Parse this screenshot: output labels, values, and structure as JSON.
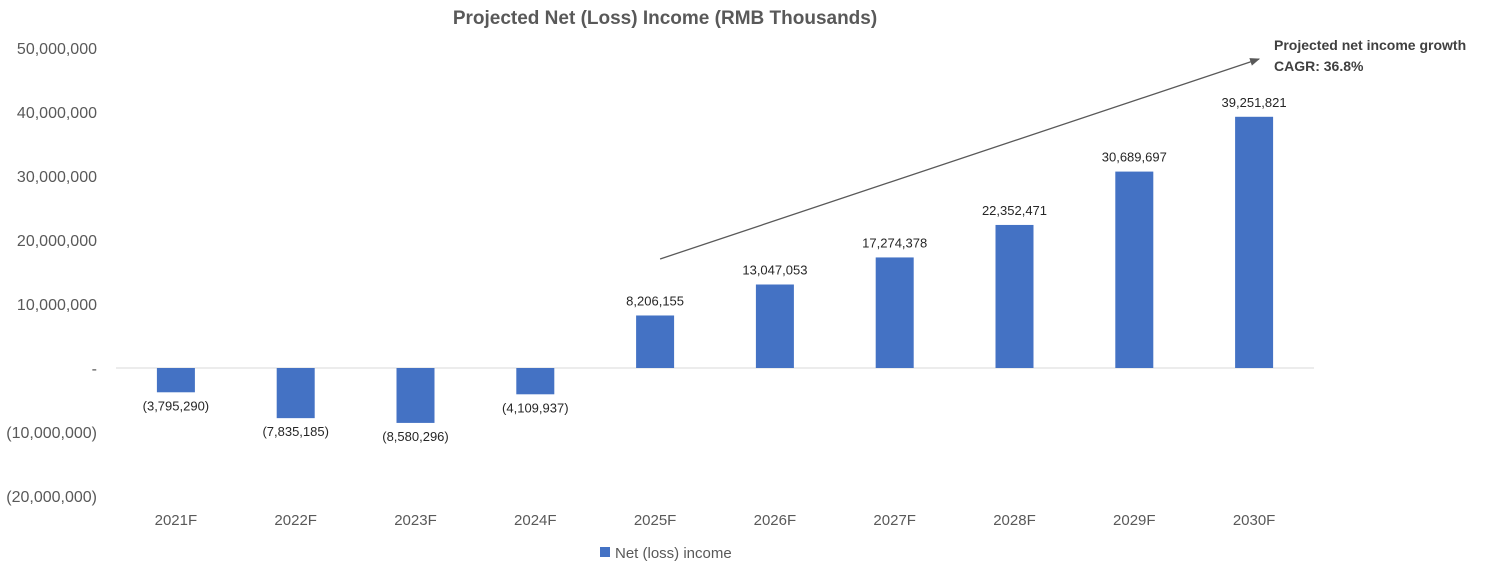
{
  "chart_data": {
    "type": "bar",
    "title": "Projected Net (Loss) Income (RMB Thousands)",
    "categories": [
      "2021F",
      "2022F",
      "2023F",
      "2024F",
      "2025F",
      "2026F",
      "2027F",
      "2028F",
      "2029F",
      "2030F"
    ],
    "series": [
      {
        "name": "Net (loss) income",
        "color": "#4472C4",
        "values": [
          -3795290,
          -7835185,
          -8580296,
          -4109937,
          8206155,
          13047053,
          17274378,
          22352471,
          30689697,
          39251821
        ],
        "data_labels": [
          "(3,795,290)",
          "(7,835,185)",
          "(8,580,296)",
          "(4,109,937)",
          "8,206,155",
          "13,047,053",
          "17,274,378",
          "22,352,471",
          "30,689,697",
          "39,251,821"
        ]
      }
    ],
    "ylim": [
      -20000000,
      50000000
    ],
    "yticks": [
      50000000,
      40000000,
      30000000,
      20000000,
      10000000,
      0,
      -10000000,
      -20000000
    ],
    "ytick_labels": [
      "50,000,000",
      "40,000,000",
      "30,000,000",
      "20,000,000",
      "10,000,000",
      "-",
      "(10,000,000)",
      "(20,000,000)"
    ],
    "xlabel": "",
    "ylabel": "",
    "grid": false,
    "legend": "bottom",
    "annotation": {
      "line1": "Projected net income growth",
      "line2": "CAGR: 36.8%",
      "arrow_from_category": "2025F",
      "arrow_to_category": "2030F"
    }
  }
}
